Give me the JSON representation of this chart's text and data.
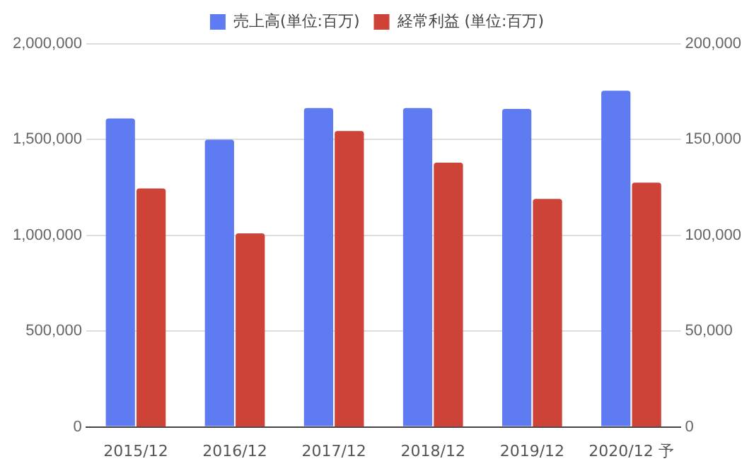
{
  "chart_data": {
    "type": "bar",
    "categories": [
      "2015/12",
      "2016/12",
      "2017/12",
      "2018/12",
      "2019/12",
      "2020/12 予"
    ],
    "series": [
      {
        "name": "売上高(単位:百万)",
        "color": "#5e7bf1",
        "values": [
          1610000,
          1500000,
          1665000,
          1665000,
          1660000,
          1755000
        ]
      },
      {
        "name": "経常利益 (単位:百万)",
        "color": "#cd4338",
        "axis": "y2",
        "values": [
          124500,
          101000,
          154500,
          138000,
          119000,
          127500
        ]
      }
    ],
    "ylim": [
      0,
      2000000
    ],
    "yticks": [
      0,
      {
        "value": 500000,
        "label": "500,000"
      },
      {
        "value": 1000000,
        "label": "1,000,000"
      },
      {
        "value": 1500000,
        "label": "1,500,000"
      },
      {
        "value": 2000000,
        "label": "2,000,000"
      }
    ],
    "y2lim": [
      0,
      200000
    ],
    "y2ticks": [
      0,
      {
        "value": 50000,
        "label": "50,000"
      },
      {
        "value": 100000,
        "label": "100,000"
      },
      {
        "value": 150000,
        "label": "150,000"
      },
      {
        "value": 200000,
        "label": "200,000"
      }
    ],
    "grid": "y",
    "legend": "top"
  }
}
